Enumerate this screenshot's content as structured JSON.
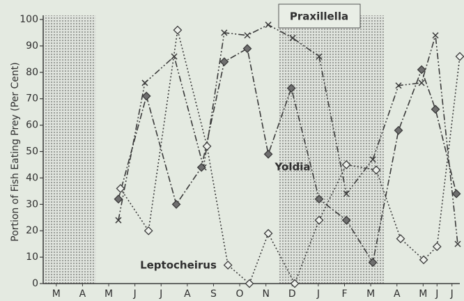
{
  "chart_data": {
    "type": "line",
    "ylabel": "Portion of Fish Eating Prey (Per Cent)",
    "ylim": [
      0,
      100
    ],
    "yticks": [
      0,
      10,
      20,
      30,
      40,
      50,
      60,
      70,
      80,
      90,
      100
    ],
    "xlim": [
      0,
      15.9
    ],
    "xticks": [
      {
        "value": 0.5,
        "label": "M"
      },
      {
        "value": 1.5,
        "label": "A"
      },
      {
        "value": 2.5,
        "label": "M"
      },
      {
        "value": 3.5,
        "label": "J"
      },
      {
        "value": 4.5,
        "label": "J"
      },
      {
        "value": 5.5,
        "label": "A"
      },
      {
        "value": 6.5,
        "label": "S"
      },
      {
        "value": 7.5,
        "label": "O"
      },
      {
        "value": 8.5,
        "label": "N"
      },
      {
        "value": 9.5,
        "label": "D"
      },
      {
        "value": 10.5,
        "label": "J"
      },
      {
        "value": 11.5,
        "label": "F"
      },
      {
        "value": 12.5,
        "label": "M"
      },
      {
        "value": 13.5,
        "label": "A"
      },
      {
        "value": 14.5,
        "label": "M"
      },
      {
        "value": 15.03,
        "label": "J"
      },
      {
        "value": 15.6,
        "label": "J"
      }
    ],
    "shaded_ranges": [
      [
        0,
        2
      ],
      [
        9,
        13
      ]
    ],
    "color": "#3a3a3a",
    "series": [
      {
        "name": "Praxillella",
        "marker": "cross",
        "linestyle": "dash-dot-dot",
        "x": [
          2.87,
          3.88,
          5.0,
          6.12,
          6.91,
          7.79,
          8.59,
          9.52,
          10.53,
          11.57,
          12.58,
          13.56,
          14.44,
          14.97,
          15.82
        ],
        "values": [
          24,
          76,
          86,
          44,
          95,
          94,
          98,
          93,
          86,
          34,
          47,
          75,
          76,
          94,
          15
        ]
      },
      {
        "name": "Yoldia",
        "marker": "diamond-filled",
        "linestyle": "dash-dot",
        "x": [
          2.87,
          3.94,
          5.08,
          6.04,
          6.91,
          7.79,
          8.59,
          9.47,
          10.53,
          11.57,
          12.58,
          13.56,
          14.44,
          14.97,
          15.77
        ],
        "values": [
          32,
          71,
          30,
          44,
          84,
          89,
          49,
          74,
          32,
          24,
          8,
          58,
          81,
          66,
          34
        ]
      },
      {
        "name": "Leptocheirus",
        "marker": "diamond-open",
        "linestyle": "dotted",
        "x": [
          2.95,
          4.02,
          5.13,
          6.25,
          7.05,
          7.87,
          8.59,
          9.6,
          10.53,
          11.57,
          12.71,
          13.64,
          14.52,
          15.03,
          15.9
        ],
        "values": [
          36,
          20,
          96,
          52,
          7,
          0,
          19,
          0,
          24,
          45,
          43,
          17,
          9,
          14,
          86
        ]
      }
    ]
  }
}
